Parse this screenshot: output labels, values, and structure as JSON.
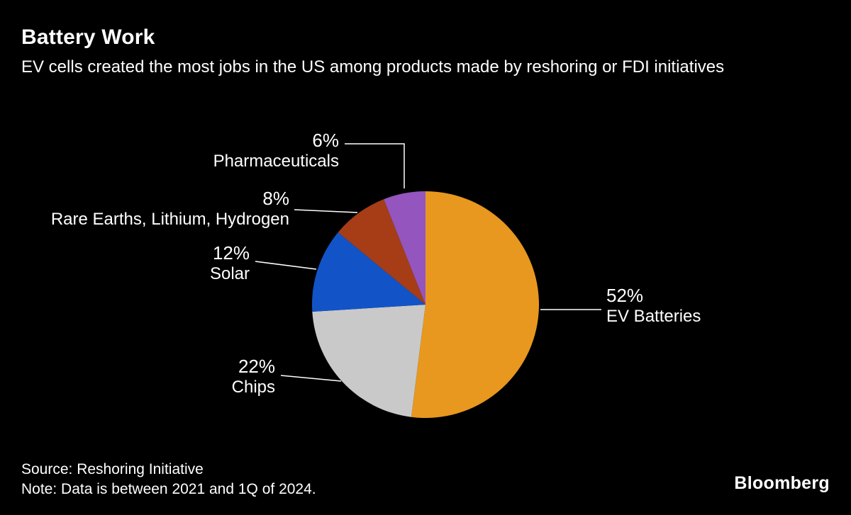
{
  "header": {
    "title": "Battery Work",
    "subtitle": "EV cells created the most jobs in the US among products made by reshoring or FDI initiatives"
  },
  "chart_data": {
    "type": "pie",
    "title": "Battery Work",
    "unit": "%",
    "start_angle_deg": 0,
    "direction": "clockwise",
    "legend_position": "callout-labels",
    "background_color": "#000000",
    "text_color": "#ffffff",
    "slices": [
      {
        "label": "EV Batteries",
        "value": 52,
        "pct": "52%",
        "color": "#E8981E"
      },
      {
        "label": "Chips",
        "value": 22,
        "pct": "22%",
        "color": "#C9C9C9"
      },
      {
        "label": "Solar",
        "value": 12,
        "pct": "12%",
        "color": "#1254C8"
      },
      {
        "label": "Rare Earths, Lithium, Hydrogen",
        "value": 8,
        "pct": "8%",
        "color": "#A63D17"
      },
      {
        "label": "Pharmaceuticals",
        "value": 6,
        "pct": "6%",
        "color": "#9455BE"
      }
    ]
  },
  "footer": {
    "source": "Source: Reshoring Initiative",
    "note": "Note: Data is between 2021 and 1Q of 2024.",
    "brand": "Bloomberg"
  }
}
